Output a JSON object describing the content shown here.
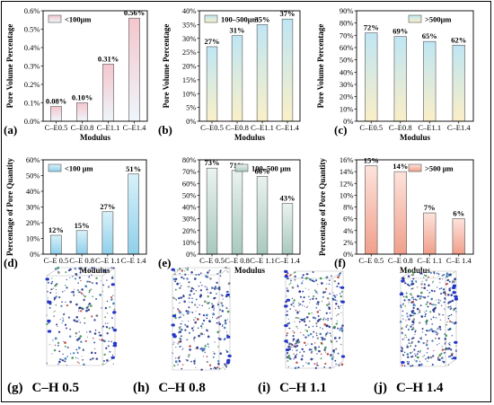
{
  "chart_data": [
    {
      "panel": "(a)",
      "type": "bar",
      "categories": [
        "C–E0.5",
        "C–E0.8",
        "C–E1.1",
        "C–E1.4"
      ],
      "values": [
        0.08,
        0.1,
        0.31,
        0.56
      ],
      "labels": [
        "0.08%",
        "0.10%",
        "0.31%",
        "0.56%"
      ],
      "xlabel": "Modulus",
      "ylabel": "Pore Volume Percentage",
      "ylim": [
        0,
        0.6
      ],
      "yticks": [
        "0.0%",
        "0.1%",
        "0.2%",
        "0.3%",
        "0.4%",
        "0.5%",
        "0.6%"
      ],
      "legend": "<100μm",
      "legend_position": "top-left",
      "colors": {
        "top": "#f4c6cd",
        "bottom": "#eef6fb"
      }
    },
    {
      "panel": "(b)",
      "type": "bar",
      "categories": [
        "C–E0.5",
        "C–E0.8",
        "C–E1.1",
        "C–E1.4"
      ],
      "values": [
        27,
        31,
        35,
        37
      ],
      "labels": [
        "27%",
        "31%",
        "35%",
        "37%"
      ],
      "xlabel": "Modulus",
      "ylabel": "Pore Volume Percentage",
      "ylim": [
        0,
        40
      ],
      "yticks": [
        "0%",
        "5%",
        "10%",
        "15%",
        "20%",
        "25%",
        "30%",
        "35%",
        "40%"
      ],
      "legend": "100–500μm",
      "legend_position": "top-left",
      "colors": {
        "top": "#bfe6f4",
        "bottom": "#faf0c8"
      }
    },
    {
      "panel": "(c)",
      "type": "bar",
      "categories": [
        "C–E0.5",
        "C–E0.8",
        "C–E1.1",
        "C–E1.4"
      ],
      "values": [
        72,
        69,
        65,
        62
      ],
      "labels": [
        "72%",
        "69%",
        "65%",
        "62%"
      ],
      "xlabel": "Modulus",
      "ylabel": "Pore Volume Percentage",
      "ylim": [
        0,
        90
      ],
      "yticks": [
        "0%",
        "10%",
        "20%",
        "30%",
        "40%",
        "50%",
        "60%",
        "70%",
        "80%",
        "90%"
      ],
      "legend": ">500μm",
      "legend_position": "top-right",
      "colors": {
        "top": "#bfe6f4",
        "bottom": "#fbeec7"
      }
    },
    {
      "panel": "(d)",
      "type": "bar",
      "categories": [
        "C–E 0.5",
        "C–E 0.8",
        "C–E 1.1",
        "C–E 1.4"
      ],
      "values": [
        12,
        15,
        27,
        51
      ],
      "labels": [
        "12%",
        "15%",
        "27%",
        "51%"
      ],
      "xlabel": "Modulus",
      "ylabel": "Percentage of Pore Quantity",
      "ylim": [
        0,
        60
      ],
      "yticks": [
        "0%",
        "10%",
        "20%",
        "30%",
        "40%",
        "50%",
        "60%"
      ],
      "legend": "<100 μm",
      "legend_position": "top-left",
      "colors": {
        "top": "#d8f1fa",
        "bottom": "#8fd0ea"
      }
    },
    {
      "panel": "(e)",
      "type": "bar",
      "categories": [
        "C–E 0.5",
        "C–E 0.8",
        "C–E 1.1",
        "C–E 1.4"
      ],
      "values": [
        73,
        71,
        66,
        43
      ],
      "labels": [
        "73%",
        "71%",
        "66%",
        "43%"
      ],
      "xlabel": "Modulus",
      "ylabel": "",
      "ylim": [
        0,
        80
      ],
      "yticks": [
        "0%",
        "10%",
        "20%",
        "30%",
        "40%",
        "50%",
        "60%",
        "70%",
        "80%"
      ],
      "legend": "100–500 μm",
      "legend_position": "top-right",
      "colors": {
        "top": "#eaf3ef",
        "bottom": "#a9c9bd"
      }
    },
    {
      "panel": "(f)",
      "type": "bar",
      "categories": [
        "C–E 0.5",
        "C–E 0.8",
        "C–E 1.1",
        "C–E 1.4"
      ],
      "values": [
        15,
        14,
        7,
        6
      ],
      "labels": [
        "15%",
        "14%",
        "7%",
        "6%"
      ],
      "xlabel": "Modulus",
      "ylabel": "Percentage of Pore Quantity",
      "ylim": [
        0,
        16
      ],
      "yticks": [
        "0%",
        "2%",
        "4%",
        "6%",
        "8%",
        "10%",
        "12%",
        "14%",
        "16%"
      ],
      "legend": ">500 μm",
      "legend_position": "top-right",
      "colors": {
        "top": "#fde3dc",
        "bottom": "#f19f8b"
      }
    }
  ],
  "images": [
    {
      "letter": "(g)",
      "caption": "C–H 0.5"
    },
    {
      "letter": "(h)",
      "caption": "C–H 0.8"
    },
    {
      "letter": "(i)",
      "caption": "C–H 1.1"
    },
    {
      "letter": "(j)",
      "caption": "C–H 1.4"
    }
  ],
  "colors": {
    "axis": "#000000",
    "bar_edge": "#555555",
    "pore_points": [
      "#1b2a8a",
      "#2f6fb3",
      "#2e8b3d",
      "#b33a2a",
      "#7a7a7a"
    ]
  }
}
